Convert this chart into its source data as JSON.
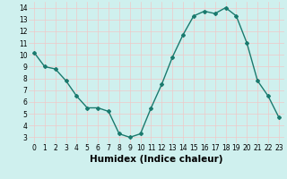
{
  "x": [
    0,
    1,
    2,
    3,
    4,
    5,
    6,
    7,
    8,
    9,
    10,
    11,
    12,
    13,
    14,
    15,
    16,
    17,
    18,
    19,
    20,
    21,
    22,
    23
  ],
  "y": [
    10.2,
    9.0,
    8.8,
    7.8,
    6.5,
    5.5,
    5.5,
    5.2,
    3.3,
    3.0,
    3.3,
    5.5,
    7.5,
    9.8,
    11.7,
    13.3,
    13.7,
    13.5,
    14.0,
    13.3,
    11.0,
    7.8,
    6.5,
    4.7
  ],
  "line_color": "#1a7a6e",
  "marker": "D",
  "marker_size": 2,
  "bg_color": "#cff0ee",
  "grid_color": "#f0c8c8",
  "xlabel": "Humidex (Indice chaleur)",
  "xlim": [
    -0.5,
    23.5
  ],
  "ylim": [
    2.5,
    14.5
  ],
  "yticks": [
    3,
    4,
    5,
    6,
    7,
    8,
    9,
    10,
    11,
    12,
    13,
    14
  ],
  "xticks": [
    0,
    1,
    2,
    3,
    4,
    5,
    6,
    7,
    8,
    9,
    10,
    11,
    12,
    13,
    14,
    15,
    16,
    17,
    18,
    19,
    20,
    21,
    22,
    23
  ],
  "tick_fontsize": 5.5,
  "xlabel_fontsize": 7.5,
  "linewidth": 1.0
}
